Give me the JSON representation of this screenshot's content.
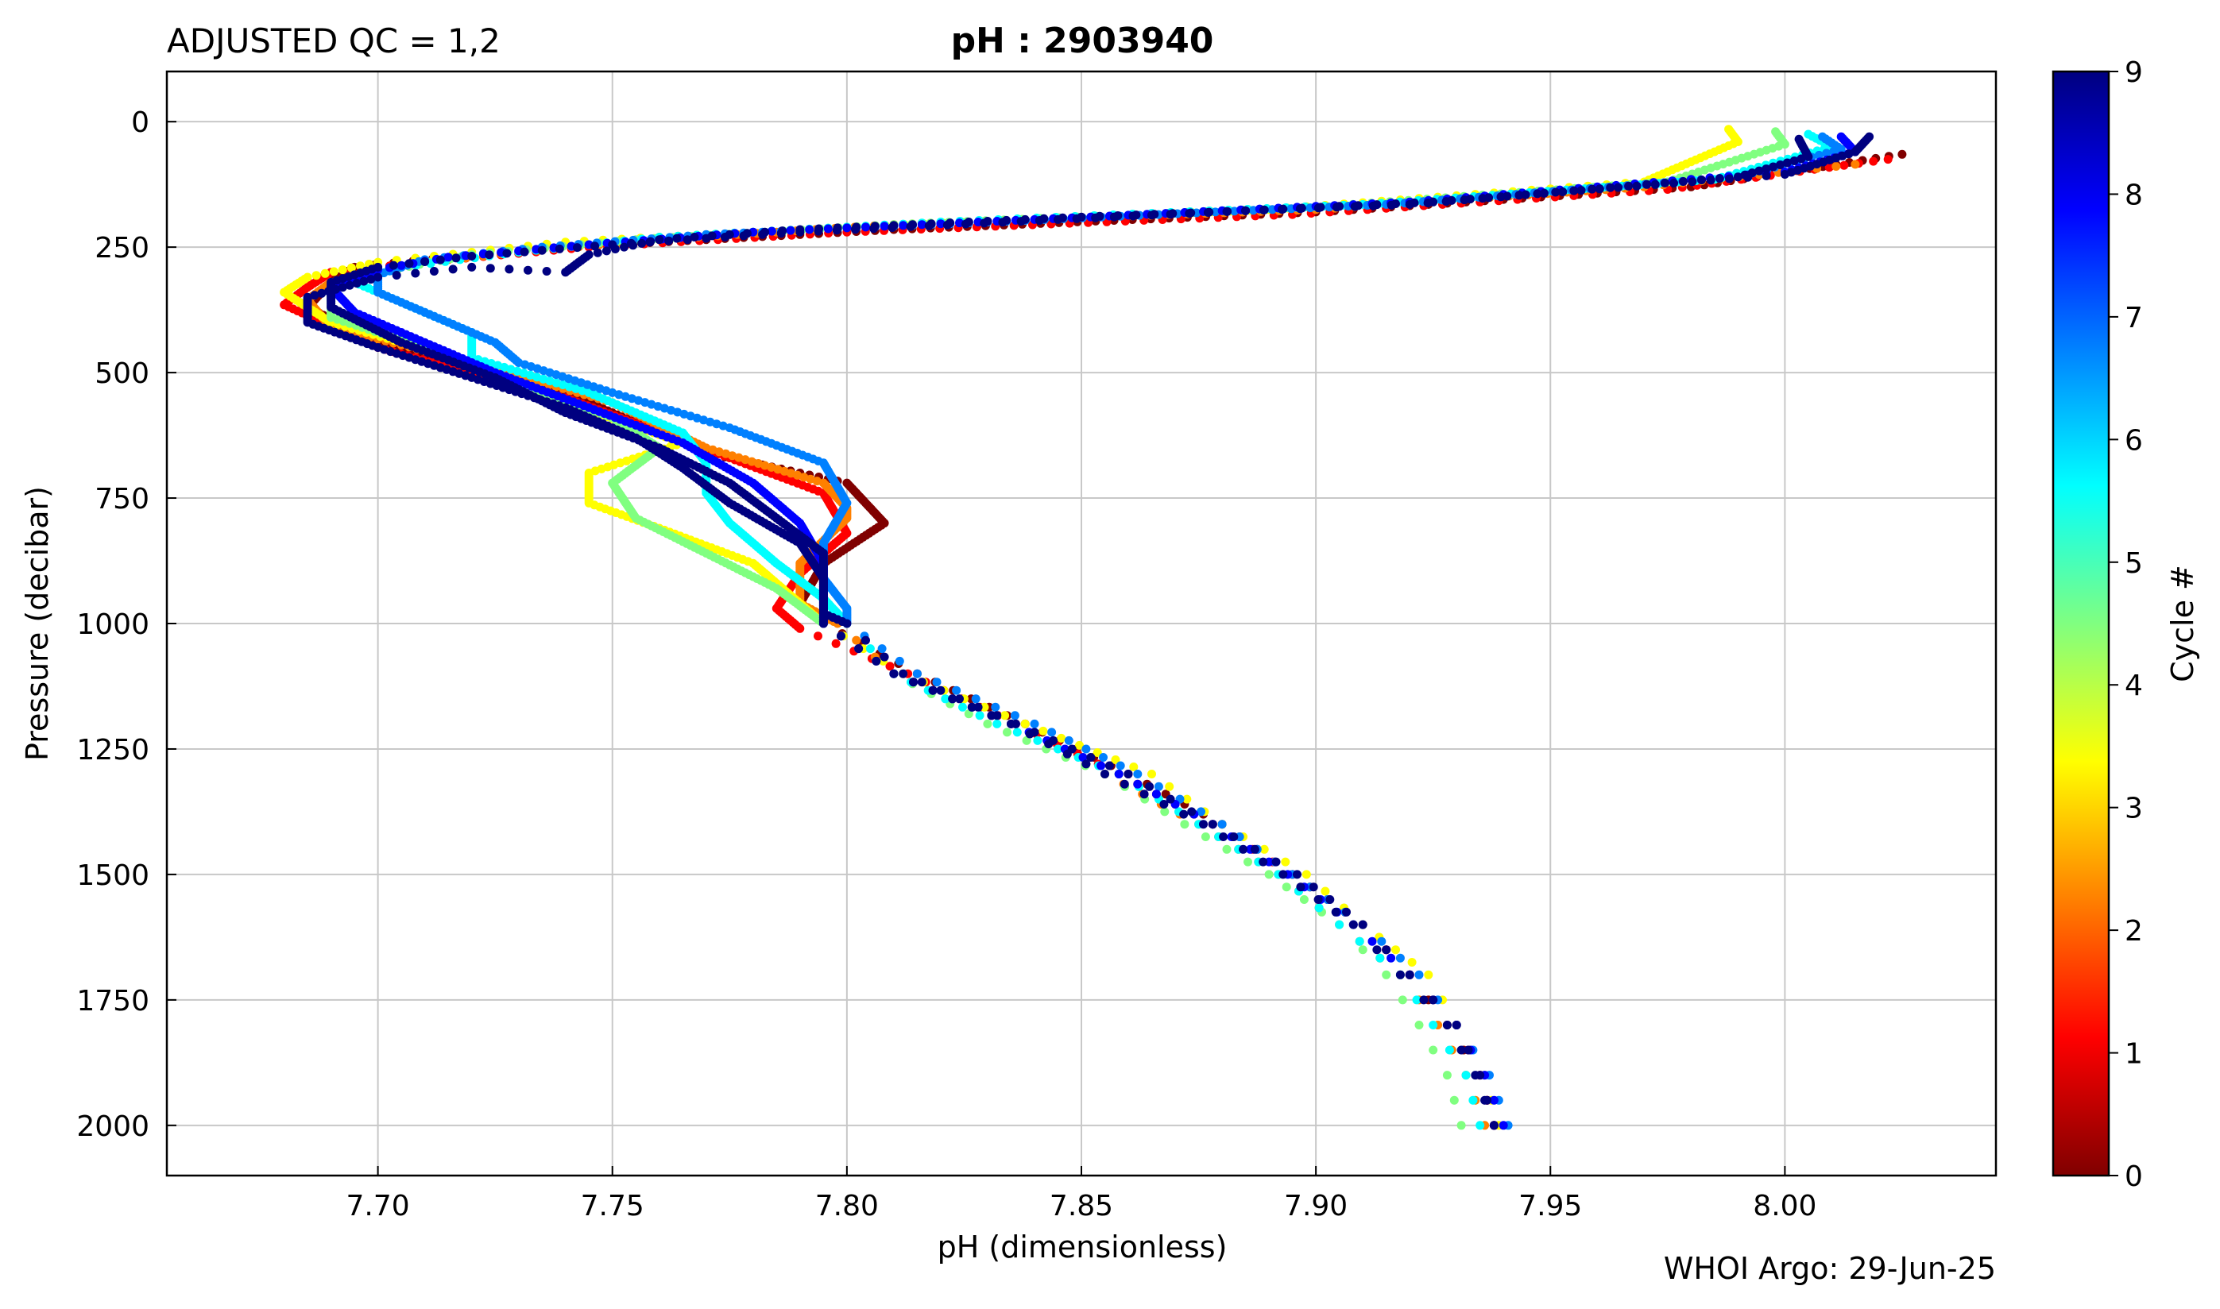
{
  "header": {
    "qc_label": "ADJUSTED QC = 1,2",
    "title": "pH : 2903940"
  },
  "footer": {
    "credit": "WHOI Argo: 29-Jun-25"
  },
  "chart_data": {
    "type": "scatter",
    "xlabel": "pH  (dimensionless)",
    "ylabel": "Pressure  (decibar)",
    "xlim": [
      7.655,
      8.045
    ],
    "ylim": [
      2100,
      -100
    ],
    "y_inverted": true,
    "grid": true,
    "x_ticks": [
      7.7,
      7.75,
      7.8,
      7.85,
      7.9,
      7.95,
      8.0
    ],
    "x_tick_labels": [
      "7.70",
      "7.75",
      "7.80",
      "7.85",
      "7.90",
      "7.95",
      "8.00"
    ],
    "y_ticks": [
      0,
      250,
      500,
      750,
      1000,
      1250,
      1500,
      1750,
      2000
    ],
    "y_tick_labels": [
      "0",
      "250",
      "500",
      "750",
      "1000",
      "1250",
      "1500",
      "1750",
      "2000"
    ],
    "colorbar": {
      "label": "Cycle #",
      "range": [
        0,
        9
      ],
      "ticks": [
        0,
        1,
        2,
        3,
        4,
        5,
        6,
        7,
        8,
        9
      ],
      "tick_labels": [
        "0",
        "1",
        "2",
        "3",
        "4",
        "5",
        "6",
        "7",
        "8",
        "9"
      ],
      "colormap": "jet",
      "colors": [
        "#800000",
        "#ff0000",
        "#ff8000",
        "#ffff00",
        "#80ff80",
        "#00ffff",
        "#0080ff",
        "#0000ff",
        "#000080"
      ]
    },
    "profiles": [
      {
        "cycle": 0,
        "points": [
          [
            8.025,
            65
          ],
          [
            7.98,
            130
          ],
          [
            7.9,
            180
          ],
          [
            7.81,
            215
          ],
          [
            7.75,
            245
          ],
          [
            7.72,
            265
          ],
          [
            7.695,
            290
          ],
          [
            7.69,
            320
          ],
          [
            7.685,
            370
          ],
          [
            7.7,
            440
          ],
          [
            7.74,
            540
          ],
          [
            7.77,
            660
          ],
          [
            7.8,
            720
          ],
          [
            7.808,
            800
          ],
          [
            7.795,
            880
          ],
          [
            7.79,
            960
          ],
          [
            7.795,
            1000
          ],
          [
            7.815,
            1100
          ],
          [
            7.838,
            1200
          ],
          [
            7.86,
            1300
          ],
          [
            7.88,
            1400
          ],
          [
            7.895,
            1500
          ],
          [
            7.91,
            1600
          ],
          [
            7.92,
            1700
          ],
          [
            7.928,
            1800
          ],
          [
            7.935,
            1900
          ],
          [
            7.938,
            2000
          ]
        ]
      },
      {
        "cycle": 1,
        "points": [
          [
            8.022,
            75
          ],
          [
            7.975,
            135
          ],
          [
            7.895,
            185
          ],
          [
            7.8,
            220
          ],
          [
            7.745,
            250
          ],
          [
            7.715,
            275
          ],
          [
            7.69,
            300
          ],
          [
            7.685,
            330
          ],
          [
            7.68,
            365
          ],
          [
            7.7,
            450
          ],
          [
            7.74,
            550
          ],
          [
            7.775,
            670
          ],
          [
            7.795,
            740
          ],
          [
            7.8,
            820
          ],
          [
            7.79,
            900
          ],
          [
            7.785,
            970
          ],
          [
            7.79,
            1010
          ],
          [
            7.813,
            1100
          ],
          [
            7.836,
            1200
          ],
          [
            7.858,
            1300
          ],
          [
            7.878,
            1400
          ],
          [
            7.895,
            1500
          ],
          [
            7.91,
            1600
          ],
          [
            7.92,
            1700
          ],
          [
            7.93,
            1800
          ],
          [
            7.935,
            1900
          ],
          [
            7.938,
            2000
          ]
        ]
      },
      {
        "cycle": 2,
        "points": [
          [
            8.015,
            85
          ],
          [
            7.97,
            130
          ],
          [
            7.9,
            175
          ],
          [
            7.81,
            205
          ],
          [
            7.76,
            235
          ],
          [
            7.73,
            260
          ],
          [
            7.7,
            290
          ],
          [
            7.69,
            320
          ],
          [
            7.685,
            355
          ],
          [
            7.69,
            410
          ],
          [
            7.72,
            480
          ],
          [
            7.75,
            560
          ],
          [
            7.77,
            650
          ],
          [
            7.795,
            720
          ],
          [
            7.8,
            770
          ],
          [
            7.8,
            790
          ],
          [
            7.79,
            880
          ],
          [
            7.79,
            960
          ],
          [
            7.798,
            1000
          ],
          [
            7.81,
            1100
          ],
          [
            7.835,
            1200
          ],
          [
            7.855,
            1300
          ],
          [
            7.875,
            1400
          ],
          [
            7.892,
            1500
          ],
          [
            7.905,
            1600
          ],
          [
            7.918,
            1700
          ],
          [
            7.926,
            1800
          ],
          [
            7.932,
            1900
          ],
          [
            7.936,
            2000
          ]
        ]
      },
      {
        "cycle": 3,
        "points": [
          [
            7.988,
            15
          ],
          [
            7.99,
            40
          ],
          [
            7.97,
            120
          ],
          [
            7.89,
            175
          ],
          [
            7.8,
            210
          ],
          [
            7.74,
            240
          ],
          [
            7.7,
            280
          ],
          [
            7.685,
            310
          ],
          [
            7.68,
            340
          ],
          [
            7.69,
            400
          ],
          [
            7.72,
            480
          ],
          [
            7.74,
            560
          ],
          [
            7.765,
            640
          ],
          [
            7.745,
            700
          ],
          [
            7.745,
            760
          ],
          [
            7.76,
            810
          ],
          [
            7.78,
            880
          ],
          [
            7.79,
            960
          ],
          [
            7.795,
            1000
          ],
          [
            7.812,
            1100
          ],
          [
            7.838,
            1200
          ],
          [
            7.865,
            1300
          ],
          [
            7.88,
            1400
          ],
          [
            7.898,
            1500
          ],
          [
            7.91,
            1600
          ],
          [
            7.924,
            1700
          ],
          [
            7.93,
            1800
          ],
          [
            7.936,
            1900
          ],
          [
            7.939,
            2000
          ]
        ]
      },
      {
        "cycle": 4,
        "points": [
          [
            7.998,
            20
          ],
          [
            8.0,
            45
          ],
          [
            7.975,
            120
          ],
          [
            7.9,
            170
          ],
          [
            7.81,
            205
          ],
          [
            7.755,
            235
          ],
          [
            7.72,
            265
          ],
          [
            7.7,
            300
          ],
          [
            7.69,
            330
          ],
          [
            7.69,
            390
          ],
          [
            7.71,
            450
          ],
          [
            7.725,
            510
          ],
          [
            7.75,
            590
          ],
          [
            7.76,
            650
          ],
          [
            7.75,
            720
          ],
          [
            7.755,
            790
          ],
          [
            7.77,
            860
          ],
          [
            7.785,
            930
          ],
          [
            7.795,
            1000
          ],
          [
            7.81,
            1100
          ],
          [
            7.83,
            1200
          ],
          [
            7.855,
            1300
          ],
          [
            7.872,
            1400
          ],
          [
            7.89,
            1500
          ],
          [
            7.905,
            1600
          ],
          [
            7.915,
            1700
          ],
          [
            7.922,
            1800
          ],
          [
            7.928,
            1900
          ],
          [
            7.931,
            2000
          ]
        ]
      },
      {
        "cycle": 5,
        "points": [
          [
            8.005,
            25
          ],
          [
            8.01,
            50
          ],
          [
            7.985,
            115
          ],
          [
            7.91,
            165
          ],
          [
            7.82,
            200
          ],
          [
            7.76,
            230
          ],
          [
            7.73,
            260
          ],
          [
            7.705,
            290
          ],
          [
            7.695,
            320
          ],
          [
            7.71,
            380
          ],
          [
            7.72,
            420
          ],
          [
            7.72,
            470
          ],
          [
            7.745,
            540
          ],
          [
            7.765,
            620
          ],
          [
            7.77,
            680
          ],
          [
            7.77,
            740
          ],
          [
            7.775,
            800
          ],
          [
            7.785,
            880
          ],
          [
            7.795,
            950
          ],
          [
            7.8,
            1000
          ],
          [
            7.81,
            1100
          ],
          [
            7.832,
            1200
          ],
          [
            7.858,
            1300
          ],
          [
            7.875,
            1400
          ],
          [
            7.892,
            1500
          ],
          [
            7.905,
            1600
          ],
          [
            7.918,
            1700
          ],
          [
            7.925,
            1800
          ],
          [
            7.932,
            1900
          ],
          [
            7.935,
            2000
          ]
        ]
      },
      {
        "cycle": 6,
        "points": [
          [
            8.008,
            30
          ],
          [
            8.012,
            55
          ],
          [
            7.99,
            110
          ],
          [
            7.915,
            165
          ],
          [
            7.83,
            200
          ],
          [
            7.77,
            225
          ],
          [
            7.735,
            250
          ],
          [
            7.71,
            275
          ],
          [
            7.7,
            305
          ],
          [
            7.7,
            340
          ],
          [
            7.715,
            400
          ],
          [
            7.725,
            440
          ],
          [
            7.73,
            480
          ],
          [
            7.75,
            540
          ],
          [
            7.775,
            610
          ],
          [
            7.795,
            680
          ],
          [
            7.8,
            760
          ],
          [
            7.795,
            840
          ],
          [
            7.795,
            910
          ],
          [
            7.8,
            970
          ],
          [
            7.8,
            1000
          ],
          [
            7.815,
            1100
          ],
          [
            7.84,
            1200
          ],
          [
            7.862,
            1300
          ],
          [
            7.88,
            1400
          ],
          [
            7.895,
            1500
          ],
          [
            7.91,
            1600
          ],
          [
            7.922,
            1700
          ],
          [
            7.93,
            1800
          ],
          [
            7.937,
            1900
          ],
          [
            7.941,
            2000
          ]
        ]
      },
      {
        "cycle": 7,
        "points": [
          [
            8.012,
            30
          ],
          [
            8.015,
            60
          ],
          [
            8.0,
            100
          ],
          [
            7.92,
            160
          ],
          [
            7.84,
            195
          ],
          [
            7.78,
            220
          ],
          [
            7.745,
            245
          ],
          [
            7.715,
            270
          ],
          [
            7.7,
            295
          ],
          [
            7.69,
            330
          ],
          [
            7.695,
            380
          ],
          [
            7.71,
            440
          ],
          [
            7.725,
            500
          ],
          [
            7.745,
            570
          ],
          [
            7.765,
            640
          ],
          [
            7.78,
            720
          ],
          [
            7.79,
            800
          ],
          [
            7.795,
            880
          ],
          [
            7.795,
            950
          ],
          [
            7.795,
            1000
          ],
          [
            7.81,
            1100
          ],
          [
            7.835,
            1200
          ],
          [
            7.858,
            1300
          ],
          [
            7.878,
            1400
          ],
          [
            7.894,
            1500
          ],
          [
            7.908,
            1600
          ],
          [
            7.92,
            1700
          ],
          [
            7.93,
            1800
          ],
          [
            7.936,
            1900
          ],
          [
            7.94,
            2000
          ]
        ]
      },
      {
        "cycle": 8,
        "points": [
          [
            8.018,
            30
          ],
          [
            8.015,
            60
          ],
          [
            8.0,
            105
          ],
          [
            7.925,
            160
          ],
          [
            7.845,
            195
          ],
          [
            7.79,
            220
          ],
          [
            7.75,
            245
          ],
          [
            7.72,
            268
          ],
          [
            7.7,
            290
          ],
          [
            7.69,
            320
          ],
          [
            7.69,
            370
          ],
          [
            7.705,
            440
          ],
          [
            7.725,
            510
          ],
          [
            7.74,
            580
          ],
          [
            7.76,
            650
          ],
          [
            7.775,
            720
          ],
          [
            7.785,
            790
          ],
          [
            7.795,
            860
          ],
          [
            7.795,
            930
          ],
          [
            7.795,
            1000
          ],
          [
            7.81,
            1100
          ],
          [
            7.835,
            1200
          ],
          [
            7.855,
            1300
          ],
          [
            7.876,
            1400
          ],
          [
            7.893,
            1500
          ],
          [
            7.908,
            1600
          ],
          [
            7.918,
            1700
          ],
          [
            7.928,
            1800
          ],
          [
            7.934,
            1900
          ],
          [
            7.938,
            2000
          ]
        ]
      },
      {
        "cycle": 9,
        "points": [
          [
            8.003,
            35
          ],
          [
            8.005,
            70
          ],
          [
            7.99,
            110
          ],
          [
            7.92,
            165
          ],
          [
            7.85,
            190
          ],
          [
            7.79,
            215
          ],
          [
            7.76,
            235
          ],
          [
            7.745,
            265
          ],
          [
            7.74,
            300
          ],
          [
            7.72,
            290
          ],
          [
            7.7,
            310
          ],
          [
            7.685,
            350
          ],
          [
            7.685,
            400
          ],
          [
            7.7,
            450
          ],
          [
            7.72,
            510
          ],
          [
            7.74,
            570
          ],
          [
            7.755,
            630
          ],
          [
            7.765,
            690
          ],
          [
            7.775,
            760
          ],
          [
            7.79,
            840
          ],
          [
            7.795,
            910
          ],
          [
            7.795,
            980
          ],
          [
            7.8,
            1000
          ],
          [
            7.812,
            1100
          ],
          [
            7.836,
            1200
          ],
          [
            7.86,
            1300
          ],
          [
            7.878,
            1400
          ],
          [
            7.896,
            1500
          ],
          [
            7.91,
            1600
          ],
          [
            7.92,
            1700
          ],
          [
            7.93,
            1800
          ],
          [
            7.935,
            1900
          ],
          [
            7.938,
            2000
          ]
        ]
      }
    ]
  }
}
